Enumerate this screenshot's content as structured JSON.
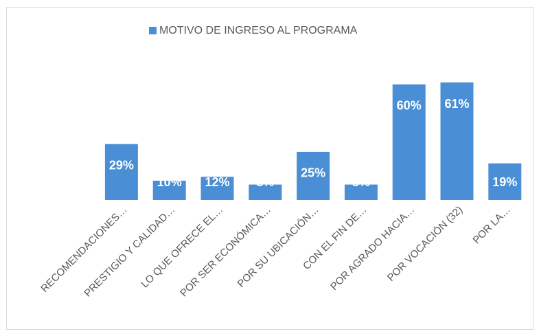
{
  "chart_data": {
    "type": "bar",
    "categories": [
      "RECOMENDACIONES…",
      "PRESTIGIO Y CALIDAD…",
      "LO QUE OFRECE EL…",
      "POR SER ECONÓMICA…",
      "POR SU UBICACIÓN…",
      "CON EL FIN DE…",
      "POR AGRADO HACIA…",
      "POR VOCACIÓN (32)",
      "POR LA…"
    ],
    "series": [
      {
        "name": "MOTIVO DE INGRESO AL PROGRAMA",
        "color": "#4a8fd6",
        "values": [
          29,
          10,
          12,
          8,
          25,
          8,
          60,
          61,
          19
        ],
        "value_labels": [
          "29%",
          "10%",
          "12%",
          "8%",
          "25%",
          "8%",
          "60%",
          "61%",
          "19%"
        ]
      }
    ]
  }
}
